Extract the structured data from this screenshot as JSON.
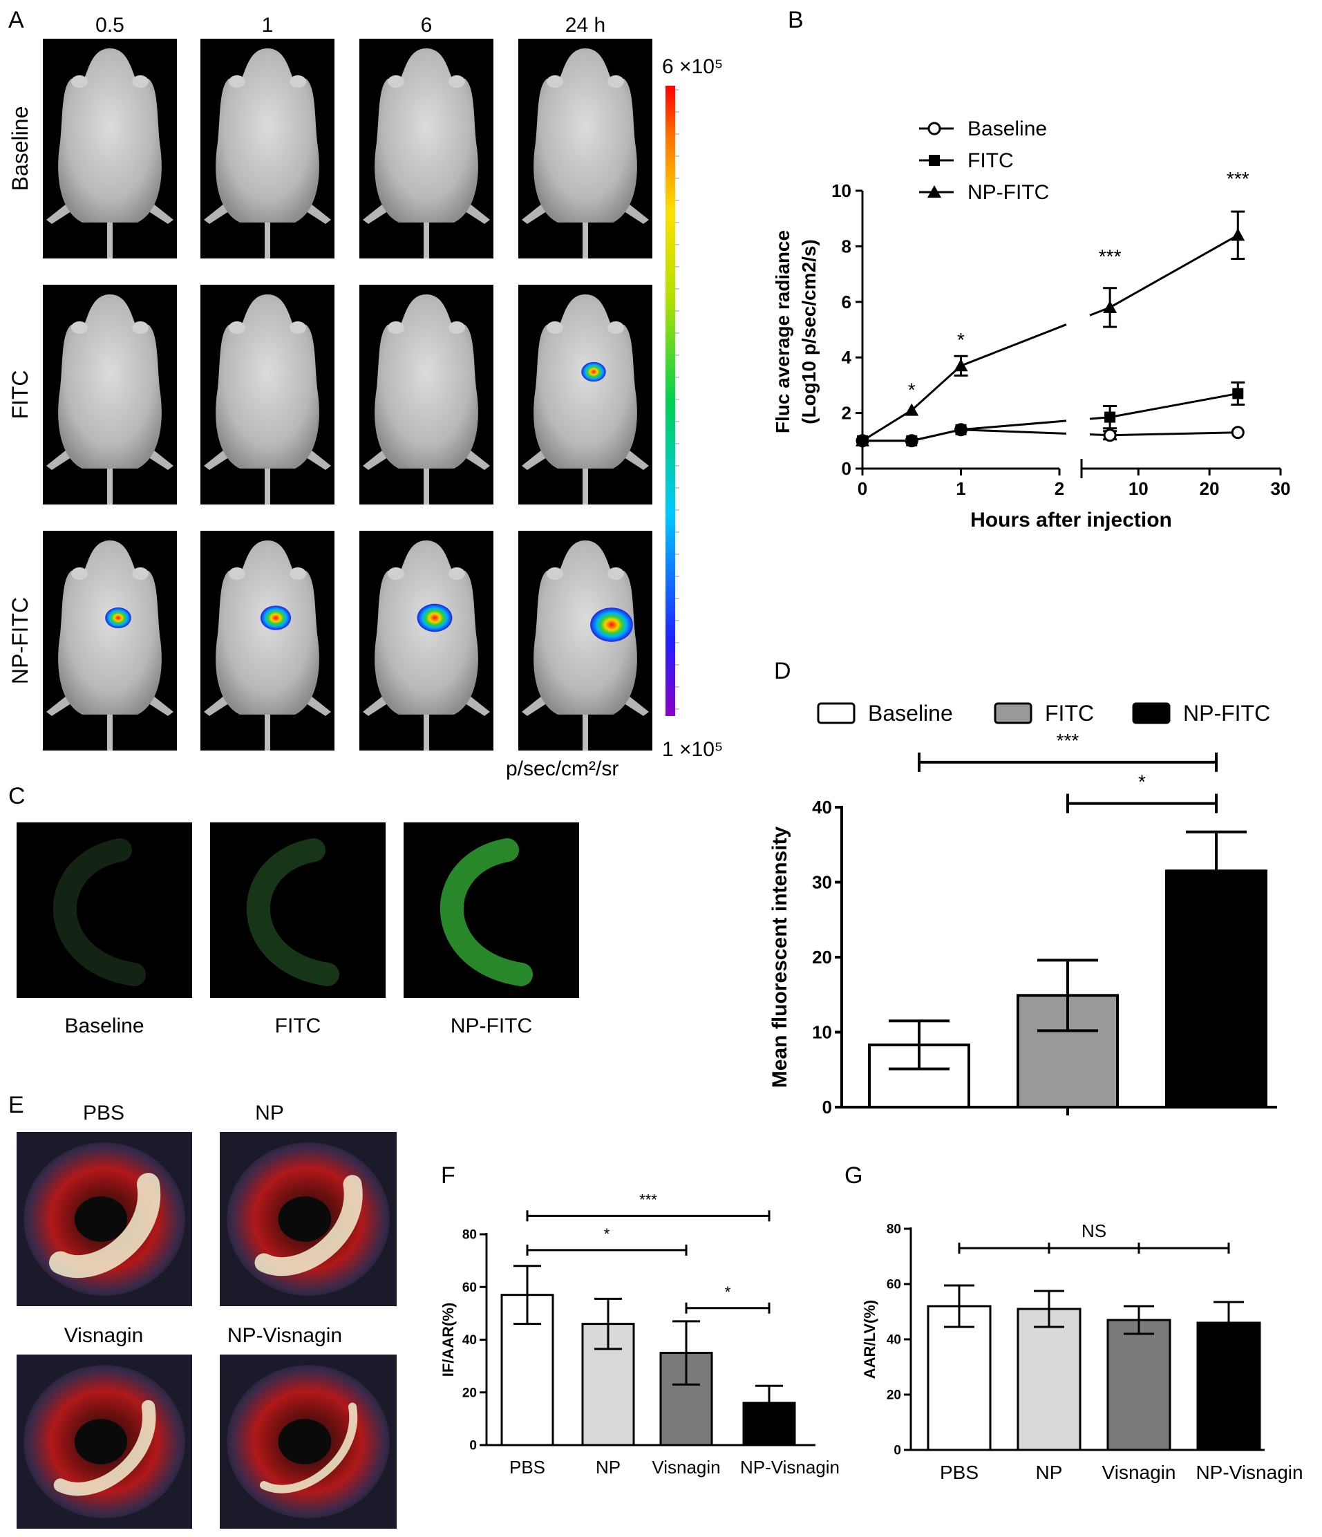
{
  "panelA": {
    "label": "A",
    "timepoints": [
      "0.5",
      "1",
      "6",
      "24 h"
    ],
    "rows": [
      "Baseline",
      "FITC",
      "NP-FITC"
    ],
    "scale_max": "6 ×10⁵",
    "scale_min": "1 ×10⁵",
    "unit": "p/sec/cm²/sr",
    "signal_levels": [
      [
        0,
        0,
        0,
        0
      ],
      [
        0,
        0,
        0,
        0.35
      ],
      [
        0.4,
        0.55,
        0.7,
        0.95
      ]
    ]
  },
  "panelB": {
    "label": "B"
  },
  "panelC": {
    "label": "C",
    "labels": [
      "Baseline",
      "FITC",
      "NP-FITC"
    ],
    "brightness": [
      0.05,
      0.15,
      0.6
    ]
  },
  "panelD": {
    "label": "D"
  },
  "panelE": {
    "label": "E",
    "labels": [
      "PBS",
      "NP",
      "Visnagin",
      "NP-Visnagin"
    ]
  },
  "panelF": {
    "label": "F"
  },
  "panelG": {
    "label": "G"
  },
  "colors": {
    "black": "#000000",
    "white": "#ffffff",
    "mid_gray": "#999999",
    "light_gray": "#d9d9d9",
    "dark_gray": "#7a7a7a"
  },
  "chart_data": [
    {
      "id": "B",
      "type": "line",
      "xlabel": "Hours after injection",
      "ylabel": "Fluc average radiance (Log10 p/sec/cm2/s)",
      "ylabel_lines": [
        "Fluc average radiance",
        "(Log10 p/sec/cm2/s)"
      ],
      "xlim": [
        0,
        30
      ],
      "x_axis_break": {
        "segment1": [
          0,
          2
        ],
        "segment2": [
          2,
          30
        ]
      },
      "ylim": [
        0,
        10
      ],
      "xticks": [
        0,
        1,
        2,
        10,
        20,
        30
      ],
      "yticks": [
        0,
        2,
        4,
        6,
        8,
        10
      ],
      "legend_position": "top-left",
      "series": [
        {
          "name": "Baseline",
          "marker": "open-circle",
          "x": [
            0,
            0.5,
            1,
            6,
            24
          ],
          "y": [
            1.0,
            1.0,
            1.4,
            1.2,
            1.3
          ],
          "err": [
            0.1,
            0.1,
            0.1,
            0.15,
            0.1
          ]
        },
        {
          "name": "FITC",
          "marker": "square",
          "x": [
            0,
            0.5,
            1,
            6,
            24
          ],
          "y": [
            1.0,
            1.0,
            1.4,
            1.85,
            2.7
          ],
          "err": [
            0.1,
            0.1,
            0.1,
            0.4,
            0.4
          ]
        },
        {
          "name": "NP-FITC",
          "marker": "triangle",
          "x": [
            0,
            0.5,
            1,
            6,
            24
          ],
          "y": [
            1.0,
            2.1,
            3.7,
            5.8,
            8.4
          ],
          "err": [
            0.1,
            0.1,
            0.35,
            0.7,
            0.85
          ]
        }
      ],
      "annotations": [
        {
          "text": "*",
          "x": 0.5,
          "y": 2.6
        },
        {
          "text": "*",
          "x": 1,
          "y": 4.4
        },
        {
          "text": "***",
          "x": 6,
          "y": 7.4
        },
        {
          "text": "***",
          "x": 24,
          "y": 10.2
        }
      ]
    },
    {
      "id": "D",
      "type": "bar",
      "categories": [
        "Baseline",
        "FITC",
        "NP-FITC"
      ],
      "values": [
        8.3,
        14.9,
        31.5
      ],
      "errors": [
        3.2,
        4.7,
        5.2
      ],
      "bar_colors": [
        "#ffffff",
        "#999999",
        "#000000"
      ],
      "ylabel": "Mean fluorescent intensity",
      "ylim": [
        0,
        40
      ],
      "yticks": [
        0,
        10,
        20,
        30,
        40
      ],
      "legend_position": "top",
      "brackets": [
        {
          "from": 0,
          "to": 2,
          "text": "***",
          "y": 46
        },
        {
          "from": 1,
          "to": 2,
          "text": "*",
          "y": 40.5
        }
      ]
    },
    {
      "id": "F",
      "type": "bar",
      "categories": [
        "PBS",
        "NP",
        "Visnagin",
        "NP-Visnagin"
      ],
      "values": [
        57,
        46,
        35,
        16
      ],
      "errors": [
        11,
        9.5,
        12,
        6.5
      ],
      "bar_colors": [
        "#ffffff",
        "#d9d9d9",
        "#7a7a7a",
        "#000000"
      ],
      "ylabel": "IF/AAR(%)",
      "ylim": [
        0,
        80
      ],
      "yticks": [
        0,
        20,
        40,
        60,
        80
      ],
      "brackets": [
        {
          "from": 0,
          "to": 3,
          "text": "***",
          "y": 87
        },
        {
          "from": 0,
          "to": 2,
          "text": "*",
          "y": 74
        },
        {
          "from": 2,
          "to": 3,
          "text": "*",
          "y": 52
        }
      ]
    },
    {
      "id": "G",
      "type": "bar",
      "categories": [
        "PBS",
        "NP",
        "Visnagin",
        "NP-Visnagin"
      ],
      "values": [
        52,
        51,
        47,
        46
      ],
      "errors": [
        7.5,
        6.5,
        5,
        7.5
      ],
      "bar_colors": [
        "#ffffff",
        "#d9d9d9",
        "#7a7a7a",
        "#000000"
      ],
      "ylabel": "AAR/LV(%)",
      "ylim": [
        0,
        80
      ],
      "yticks": [
        0,
        20,
        40,
        60,
        80
      ],
      "brackets": [
        {
          "from": 0,
          "to": 3,
          "text": "NS",
          "y": 73,
          "multi": true
        }
      ]
    }
  ]
}
